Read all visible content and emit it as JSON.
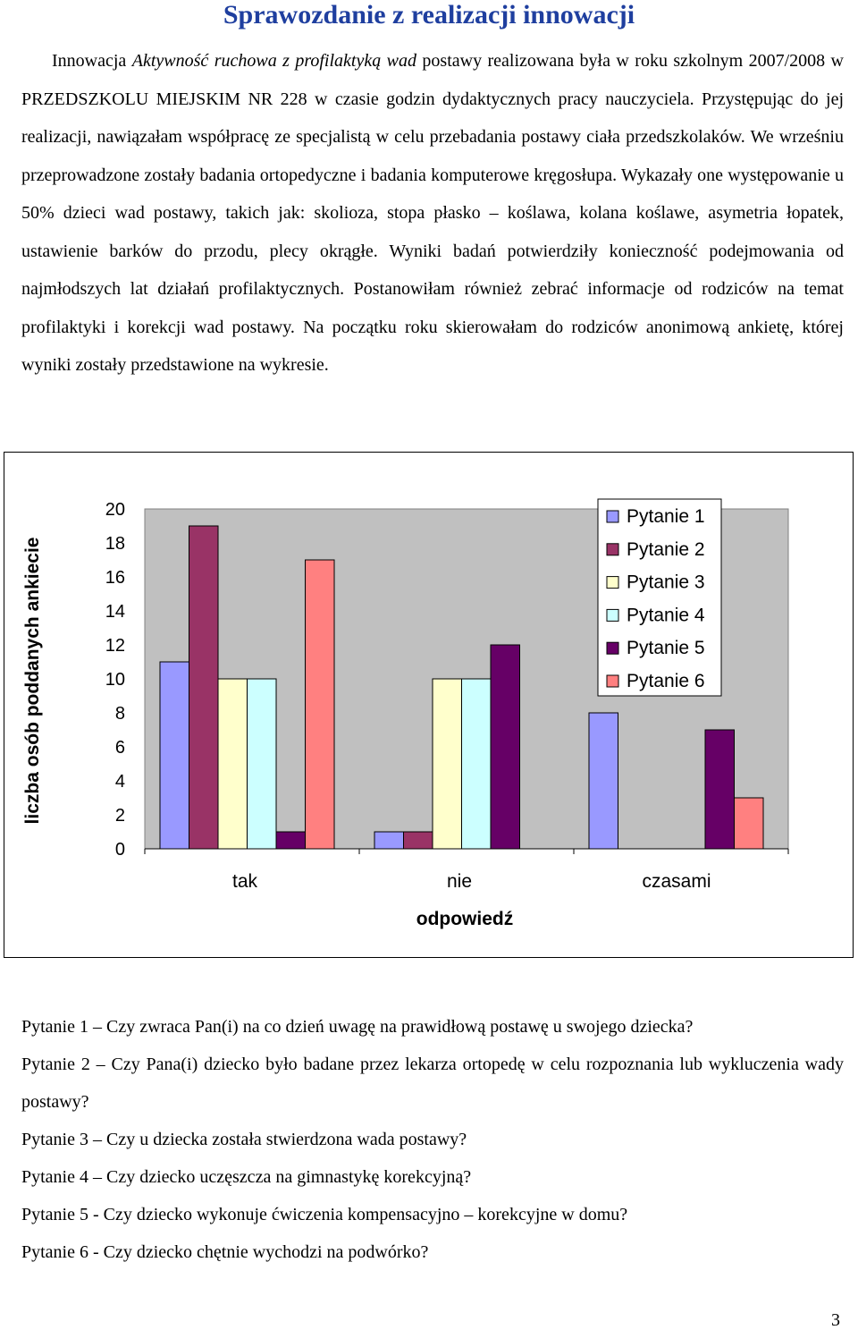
{
  "title": "Sprawozdanie z realizacji innowacji",
  "intro": {
    "prefix": "Innowacja ",
    "italic_name": "Aktywność ruchowa z profilaktyką wad",
    "body": " postawy realizowana była w roku szkolnym 2007/2008 w PRZEDSZKOLU MIEJSKIM NR 228 w czasie godzin dydaktycznych pracy nauczyciela. Przystępując do jej realizacji, nawiązałam współpracę ze specjalistą w celu przebadania postawy ciała przedszkolaków. We wrześniu przeprowadzone zostały badania ortopedyczne i badania komputerowe kręgosłupa. Wykazały one występowanie u 50% dzieci wad postawy, takich jak: skolioza, stopa płasko – koślawa, kolana koślawe, asymetria łopatek, ustawienie barków do przodu, plecy okrągłe. Wyniki badań potwierdziły konieczność podejmowania od najmłodszych lat działań profilaktycznych. Postanowiłam również zebrać informacje od rodziców na temat profilaktyki i korekcji wad postawy. Na początku roku skierowałam do rodziców anonimową ankietę, której wyniki zostały przedstawione na wykresie."
  },
  "chart_data": {
    "type": "bar",
    "title": "",
    "xlabel": "odpowiedź",
    "ylabel": "liczba osób poddanych ankiecie",
    "categories": [
      "tak",
      "nie",
      "czasami"
    ],
    "ylim": [
      0,
      20
    ],
    "yticks": [
      "0",
      "2",
      "4",
      "6",
      "8",
      "10",
      "12",
      "14",
      "16",
      "18",
      "20"
    ],
    "legend_position": "top-right",
    "grid": false,
    "series": [
      {
        "name": "Pytanie 1",
        "color": "#9999ff",
        "values": [
          11,
          1,
          8
        ]
      },
      {
        "name": "Pytanie 2",
        "color": "#993366",
        "values": [
          19,
          1,
          0
        ]
      },
      {
        "name": "Pytanie 3",
        "color": "#ffffcc",
        "values": [
          10,
          10,
          0
        ]
      },
      {
        "name": "Pytanie 4",
        "color": "#ccffff",
        "values": [
          10,
          10,
          0
        ]
      },
      {
        "name": "Pytanie 5",
        "color": "#660066",
        "values": [
          1,
          12,
          7
        ]
      },
      {
        "name": "Pytanie 6",
        "color": "#ff8080",
        "values": [
          17,
          0,
          3
        ]
      }
    ],
    "plot_background": "#c0c0c0"
  },
  "questions": [
    "Pytanie 1 – Czy zwraca Pan(i) na co dzień uwagę na prawidłową postawę u swojego dziecka?",
    "Pytanie 2 – Czy Pana(i) dziecko było badane przez lekarza ortopedę w celu rozpoznania lub wykluczenia wady postawy?",
    "Pytanie 3 – Czy u dziecka została stwierdzona wada postawy?",
    "Pytanie 4 – Czy dziecko uczęszcza na gimnastykę korekcyjną?",
    "Pytanie 5 - Czy dziecko wykonuje ćwiczenia kompensacyjno – korekcyjne w domu?",
    "Pytanie 6 - Czy dziecko chętnie wychodzi na podwórko?"
  ],
  "page_number": "3"
}
